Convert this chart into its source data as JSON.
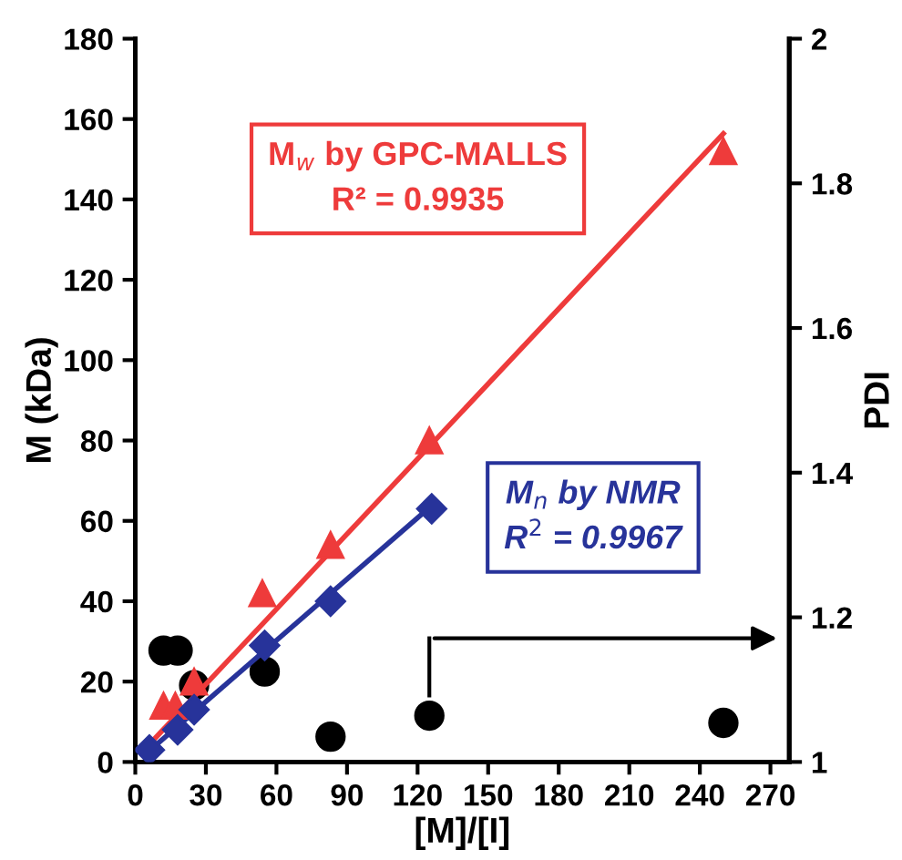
{
  "chart_data": {
    "type": "scatter",
    "xlabel": "[M]/[I]",
    "ylabel": "M (kDa)",
    "y2label": "PDI",
    "xlim": [
      0,
      278
    ],
    "xticks": [
      0,
      30,
      60,
      90,
      120,
      150,
      180,
      210,
      240,
      270
    ],
    "ylim": [
      0,
      180
    ],
    "yticks": [
      0,
      20,
      40,
      60,
      80,
      100,
      120,
      140,
      160,
      180
    ],
    "y2lim": [
      1,
      2
    ],
    "y2ticks": [
      1,
      1.2,
      1.4,
      1.6,
      1.8,
      2
    ],
    "grid": false,
    "annotations": [
      "M$_{w}$ by GPC-MALLS\nR² = 0.9935",
      "M$_{n}$ by NMR\nR$^{2}$ = 0.9967"
    ],
    "series": [
      {
        "color": "#ee3b3b",
        "marker": "triangle",
        "x": [
          12,
          17,
          25,
          54,
          83,
          125,
          250
        ],
        "values": [
          14,
          14,
          20,
          42,
          54,
          80,
          152
        ]
      },
      {
        "color": "#27339a",
        "marker": "diamond",
        "x": [
          6,
          18,
          25,
          55,
          83,
          126
        ],
        "values": [
          3,
          8,
          13,
          29,
          40,
          63
        ]
      },
      {
        "type": "line",
        "color": "#ee3b3b",
        "marker": "none",
        "x": [
          6,
          250
        ],
        "values": [
          4.4,
          156.4
        ]
      },
      {
        "type": "line",
        "color": "#27339a",
        "marker": "none",
        "x": [
          6,
          125
        ],
        "values": [
          2.8,
          63.3
        ]
      },
      {
        "type": "scatter",
        "color": "#000000",
        "marker": "circle",
        "axis": "y2",
        "x": [
          12,
          18,
          25,
          55,
          83,
          125,
          250
        ],
        "values": [
          1.154,
          1.154,
          1.106,
          1.125,
          1.035,
          1.064,
          1.054
        ]
      }
    ]
  }
}
